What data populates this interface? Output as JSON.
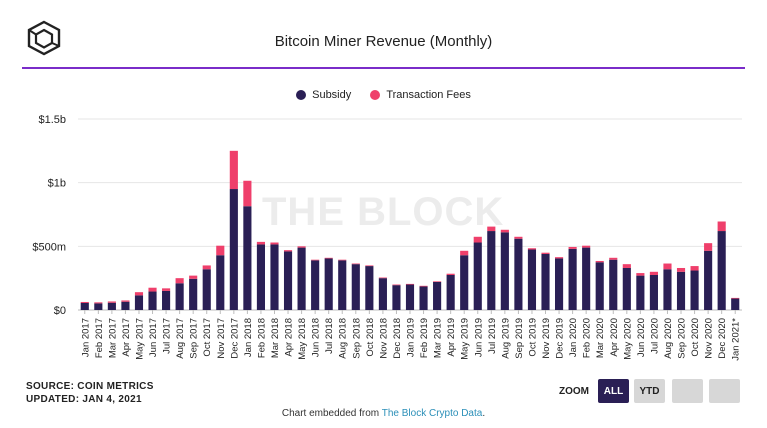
{
  "header": {
    "title": "Bitcoin Miner Revenue (Monthly)"
  },
  "watermark": "THE BLOCK",
  "source_line": "SOURCE: COIN METRICS",
  "updated_line": "UPDATED: JAN 4, 2021",
  "zoom": {
    "label": "ZOOM",
    "buttons": [
      "ALL",
      "YTD",
      "",
      ""
    ],
    "active": "ALL"
  },
  "footer": {
    "prefix": "Chart embedded from ",
    "link": "The Block Crypto Data",
    "suffix": "."
  },
  "colors": {
    "subsidy": "#2a1f55",
    "fees": "#ef3f6b",
    "accent": "#7a2cc9"
  },
  "chart_data": {
    "type": "bar",
    "stacked": true,
    "title": "Bitcoin Miner Revenue (Monthly)",
    "legend_position": "top",
    "ylim": [
      0,
      1500
    ],
    "y_ticks": [
      0,
      500,
      1000,
      1500
    ],
    "y_tick_labels": [
      "$0",
      "$500m",
      "$1b",
      "$1.5b"
    ],
    "categories": [
      "Jan 2017",
      "Feb 2017",
      "Mar 2017",
      "Apr 2017",
      "May 2017",
      "Jun 2017",
      "Jul 2017",
      "Aug 2017",
      "Sep 2017",
      "Oct 2017",
      "Nov 2017",
      "Dec 2017",
      "Jan 2018",
      "Feb 2018",
      "Mar 2018",
      "Apr 2018",
      "May 2018",
      "Jun 2018",
      "Jul 2018",
      "Aug 2018",
      "Sep 2018",
      "Oct 2018",
      "Nov 2018",
      "Dec 2018",
      "Jan 2019",
      "Feb 2019",
      "Mar 2019",
      "Apr 2019",
      "May 2019",
      "Jun 2019",
      "Jul 2019",
      "Aug 2019",
      "Sep 2019",
      "Oct 2019",
      "Nov 2019",
      "Dec 2019",
      "Jan 2020",
      "Feb 2020",
      "Mar 2020",
      "Apr 2020",
      "May 2020",
      "Jun 2020",
      "Jul 2020",
      "Aug 2020",
      "Sep 2020",
      "Oct 2020",
      "Nov 2020",
      "Dec 2020",
      "Jan 2021*"
    ],
    "series": [
      {
        "name": "Subsidy",
        "color": "#2a1f55",
        "values": [
          55,
          52,
          57,
          65,
          115,
          145,
          150,
          210,
          245,
          320,
          430,
          950,
          815,
          515,
          515,
          460,
          490,
          390,
          405,
          390,
          360,
          345,
          250,
          195,
          200,
          185,
          220,
          275,
          430,
          530,
          620,
          610,
          560,
          475,
          440,
          405,
          480,
          490,
          375,
          395,
          330,
          270,
          275,
          320,
          300,
          310,
          465,
          620,
          90
        ]
      },
      {
        "name": "Transaction Fees",
        "color": "#ef3f6b",
        "values": [
          8,
          8,
          10,
          10,
          25,
          30,
          20,
          40,
          25,
          30,
          75,
          300,
          200,
          20,
          15,
          10,
          10,
          5,
          5,
          5,
          5,
          5,
          5,
          5,
          5,
          5,
          5,
          10,
          35,
          45,
          35,
          20,
          15,
          10,
          10,
          10,
          15,
          15,
          10,
          15,
          30,
          20,
          25,
          45,
          30,
          35,
          60,
          75,
          5
        ]
      }
    ],
    "x_tick_labels": [
      "Jan 2017",
      "Feb 2017",
      "Mar 2017",
      "Apr 2017",
      "May 2017",
      "Jun 2017",
      "Jul 2017",
      "Aug 2017",
      "Sep 2017",
      "Oct 2017",
      "Nov 2017",
      "Dec 2017",
      "Jan 2018",
      "Feb 2018",
      "Mar 2018",
      "Apr 2018",
      "May 2018",
      "Jun 2018",
      "Jul 2018",
      "Aug 2018",
      "Sep 2018",
      "Oct 2018",
      "Nov 2018",
      "Dec 2018",
      "Jan 2019",
      "Feb 2019",
      "Mar 2019",
      "Apr 2019",
      "May 2019",
      "Jun 2019",
      "Jul 2019",
      "Aug 2019",
      "Sep 2019",
      "Oct 2019",
      "Nov 2019",
      "Dec 2019",
      "Jan 2020",
      "Feb 2020",
      "Mar 2020",
      "Apr 2020",
      "May 2020",
      "Jun 2020",
      "Jul 2020",
      "Aug 2020",
      "Sep 2020",
      "Oct 2020",
      "Nov 2020",
      "Dec 2020",
      "Jan 2021*"
    ]
  }
}
